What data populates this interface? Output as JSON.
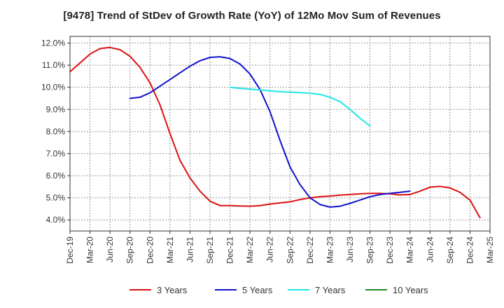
{
  "chart_data": {
    "type": "line",
    "title": "[9478]  Trend of StDev of Growth Rate (YoY) of 12Mo Mov Sum of Revenues",
    "xlabel": "",
    "ylabel": "",
    "ylim": [
      3.5,
      12.3
    ],
    "y_ticks": [
      4.0,
      5.0,
      6.0,
      7.0,
      8.0,
      9.0,
      10.0,
      11.0,
      12.0
    ],
    "y_tick_labels": [
      "4.0%",
      "5.0%",
      "6.0%",
      "7.0%",
      "8.0%",
      "9.0%",
      "10.0%",
      "11.0%",
      "12.0%"
    ],
    "x_tick_labels": [
      "Dec-19",
      "Mar-20",
      "Jun-20",
      "Sep-20",
      "Dec-20",
      "Mar-21",
      "Jun-21",
      "Sep-21",
      "Dec-21",
      "Mar-22",
      "Jun-22",
      "Sep-22",
      "Dec-22",
      "Mar-23",
      "Jun-23",
      "Sep-23",
      "Dec-23",
      "Mar-24",
      "Jun-24",
      "Sep-24",
      "Dec-24",
      "Mar-25"
    ],
    "grid": true,
    "legend_position": "bottom",
    "series": [
      {
        "name": "3 Years",
        "color": "#dd1111",
        "start_index": 0,
        "values": [
          10.7,
          11.1,
          11.5,
          11.75,
          11.8,
          11.7,
          11.4,
          10.9,
          10.2,
          9.2,
          7.9,
          6.7,
          5.9,
          5.3,
          4.85,
          4.65,
          4.65,
          4.63,
          4.62,
          4.65,
          4.72,
          4.77,
          4.82,
          4.92,
          5.0,
          5.05,
          5.08,
          5.12,
          5.15,
          5.18,
          5.2,
          5.2,
          5.18,
          5.13,
          5.15,
          5.3,
          5.48,
          5.52,
          5.45,
          5.25,
          4.9,
          4.1
        ]
      },
      {
        "name": "5 Years",
        "color": "#1111cc",
        "start_index": 9,
        "values": [
          9.5,
          9.55,
          9.75,
          10.05,
          10.35,
          10.65,
          10.95,
          11.2,
          11.35,
          11.38,
          11.3,
          11.05,
          10.6,
          9.9,
          8.9,
          7.6,
          6.4,
          5.6,
          5.0,
          4.7,
          4.58,
          4.62,
          4.75,
          4.9,
          5.05,
          5.15,
          5.2,
          5.25,
          5.3
        ]
      },
      {
        "name": "7 Years",
        "color": "#22e5e5",
        "start_index": 24,
        "values": [
          10.0,
          9.95,
          9.92,
          9.88,
          9.84,
          9.8,
          9.78,
          9.76,
          9.73,
          9.68,
          9.55,
          9.35,
          9.0,
          8.6,
          8.25
        ]
      },
      {
        "name": "10 Years",
        "color": "#228822",
        "start_index": 0,
        "values": []
      }
    ]
  }
}
